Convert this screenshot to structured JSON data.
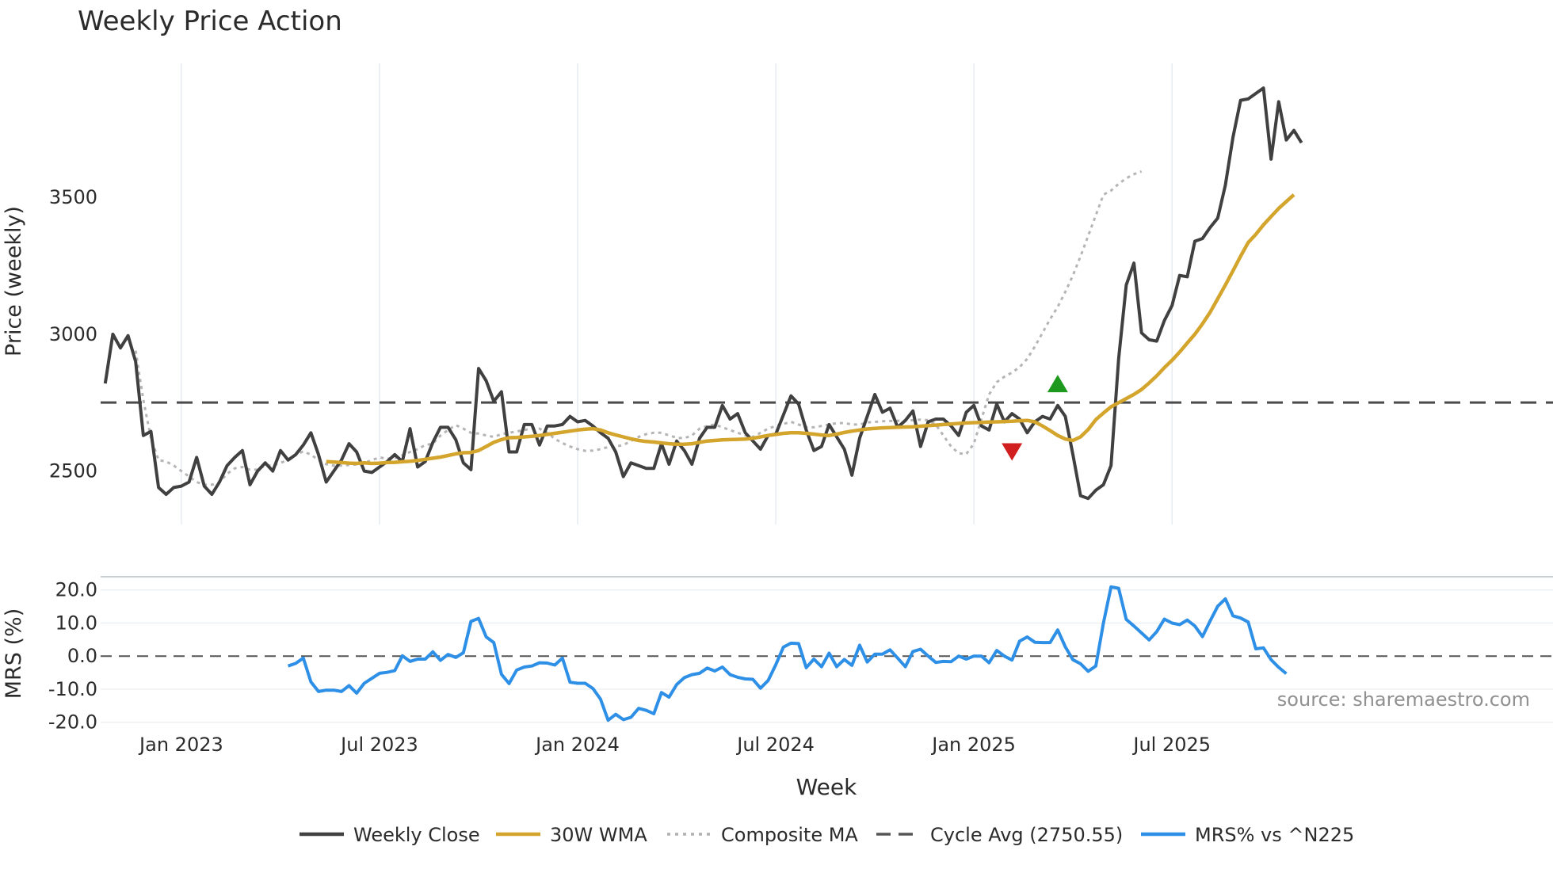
{
  "title": "Weekly Price Action",
  "source": "source: sharemaestro.com",
  "x_axis": {
    "label": "Week",
    "range": [
      -10.6,
      180
    ],
    "ticks": [
      {
        "label": "Jan 2023",
        "x": 0
      },
      {
        "label": "Jul 2023",
        "x": 26
      },
      {
        "label": "Jan 2024",
        "x": 52
      },
      {
        "label": "Jul 2024",
        "x": 78
      },
      {
        "label": "Jan 2025",
        "x": 104
      },
      {
        "label": "Jul 2025",
        "x": 130
      }
    ]
  },
  "price_axis": {
    "label": "Price (weekly)",
    "ylim": [
      2305,
      3990
    ],
    "ticks": [
      {
        "label": "2500",
        "v": 2500
      },
      {
        "label": "3000",
        "v": 3000
      },
      {
        "label": "3500",
        "v": 3500
      }
    ]
  },
  "mrs_axis": {
    "label": "MRS (%)",
    "ylim": [
      -21.5,
      24
    ],
    "ticks": [
      {
        "label": "20.0",
        "v": 20
      },
      {
        "label": "10.0",
        "v": 10
      },
      {
        "label": "0.0",
        "v": 0
      },
      {
        "label": "-10.0",
        "v": -10
      },
      {
        "label": "-20.0",
        "v": -20
      }
    ]
  },
  "legend": [
    {
      "label": "Weekly Close",
      "color": "#404040",
      "style": "solid"
    },
    {
      "label": "30W WMA",
      "color": "#d4a52c",
      "style": "solid"
    },
    {
      "label": "Composite MA",
      "color": "#b0b0b0",
      "style": "dotted"
    },
    {
      "label": "Cycle Avg (2750.55)",
      "color": "#555555",
      "style": "dashed"
    },
    {
      "label": "MRS% vs ^N225",
      "color": "#2e8fe6",
      "style": "solid"
    }
  ],
  "chart_data": {
    "type": "line",
    "title": "Weekly Price Action",
    "xlabel": "Week",
    "ylabel": "Price (weekly)",
    "x_start": -10,
    "cycle_avg": 2750.55,
    "series": [
      {
        "name": "Weekly Close",
        "values": [
          2820,
          3000,
          2950,
          2995,
          2900,
          2630,
          2645,
          2440,
          2415,
          2440,
          2445,
          2460,
          2550,
          2445,
          2415,
          2460,
          2520,
          2550,
          2575,
          2450,
          2500,
          2530,
          2500,
          2575,
          2540,
          2560,
          2595,
          2640,
          2560,
          2460,
          2500,
          2540,
          2600,
          2570,
          2500,
          2495,
          2515,
          2535,
          2560,
          2535,
          2655,
          2515,
          2535,
          2605,
          2660,
          2660,
          2615,
          2530,
          2505,
          2875,
          2830,
          2755,
          2790,
          2570,
          2570,
          2670,
          2670,
          2595,
          2665,
          2665,
          2670,
          2700,
          2680,
          2685,
          2665,
          2640,
          2620,
          2570,
          2480,
          2530,
          2520,
          2510,
          2510,
          2600,
          2525,
          2610,
          2575,
          2525,
          2620,
          2660,
          2660,
          2740,
          2690,
          2710,
          2640,
          2610,
          2580,
          2630,
          2635,
          2705,
          2775,
          2745,
          2650,
          2575,
          2590,
          2670,
          2625,
          2580,
          2485,
          2620,
          2700,
          2780,
          2715,
          2730,
          2660,
          2685,
          2720,
          2590,
          2680,
          2690,
          2690,
          2665,
          2630,
          2715,
          2740,
          2665,
          2650,
          2745,
          2680,
          2710,
          2690,
          2640,
          2680,
          2700,
          2690,
          2740,
          2700,
          2560,
          2410,
          2400,
          2430,
          2450,
          2520,
          2910,
          3180,
          3260,
          3005,
          2980,
          2975,
          3050,
          3105,
          3215,
          3210,
          3340,
          3350,
          3390,
          3425,
          3545,
          3720,
          3855,
          3860,
          3880,
          3900,
          3640,
          3850,
          3710,
          3745,
          3700
        ],
        "color": "#404040"
      },
      {
        "name": "30W WMA",
        "start_index": 29,
        "values": [
          2535,
          2533,
          2531,
          2529,
          2528,
          2530,
          2528,
          2529,
          2531,
          2532,
          2534,
          2536,
          2539,
          2543,
          2547,
          2551,
          2557,
          2563,
          2567,
          2568,
          2575,
          2590,
          2605,
          2615,
          2622,
          2623,
          2625,
          2627,
          2630,
          2634,
          2638,
          2642,
          2646,
          2650,
          2653,
          2655,
          2650,
          2640,
          2632,
          2625,
          2618,
          2612,
          2608,
          2606,
          2603,
          2600,
          2598,
          2598,
          2600,
          2605,
          2610,
          2612,
          2614,
          2615,
          2616,
          2617,
          2620,
          2625,
          2630,
          2634,
          2638,
          2640,
          2640,
          2638,
          2635,
          2632,
          2630,
          2635,
          2641,
          2646,
          2650,
          2654,
          2656,
          2658,
          2659,
          2660,
          2661,
          2662,
          2664,
          2666,
          2668,
          2670,
          2672,
          2674,
          2676,
          2677,
          2678,
          2679,
          2680,
          2681,
          2682,
          2684,
          2685,
          2680,
          2665,
          2648,
          2630,
          2617,
          2612,
          2625,
          2652,
          2688,
          2712,
          2735,
          2750,
          2765,
          2780,
          2798,
          2822,
          2848,
          2878,
          2905,
          2935,
          2968,
          3000,
          3038,
          3080,
          3130,
          3180,
          3232,
          3285,
          3335,
          3365,
          3400,
          3430,
          3460,
          3485,
          3510
        ]
      },
      {
        "name": "Composite MA",
        "start_index": 4,
        "values": [
          2940,
          2760,
          2620,
          2540,
          2535,
          2520,
          2500,
          2480,
          2460,
          2450,
          2450,
          2460,
          2490,
          2510,
          2515,
          2505,
          2505,
          2520,
          2520,
          2530,
          2540,
          2560,
          2572,
          2560,
          2540,
          2525,
          2520,
          2520,
          2522,
          2524,
          2530,
          2540,
          2550,
          2545,
          2548,
          2558,
          2570,
          2580,
          2595,
          2600,
          2630,
          2650,
          2668,
          2655,
          2640,
          2637,
          2630,
          2625,
          2635,
          2640,
          2645,
          2650,
          2656,
          2655,
          2640,
          2618,
          2602,
          2590,
          2580,
          2574,
          2575,
          2580,
          2588,
          2590,
          2595,
          2610,
          2625,
          2635,
          2640,
          2640,
          2630,
          2622,
          2620,
          2630,
          2655,
          2665,
          2670,
          2660,
          2650,
          2640,
          2630,
          2625,
          2640,
          2655,
          2665,
          2672,
          2680,
          2670,
          2660,
          2660,
          2665,
          2670,
          2675,
          2676,
          2670,
          2670,
          2678,
          2680,
          2682,
          2683,
          2684,
          2684,
          2686,
          2688,
          2686,
          2670,
          2630,
          2590,
          2565,
          2562,
          2600,
          2690,
          2780,
          2825,
          2845,
          2860,
          2880,
          2910,
          2955,
          3005,
          3055,
          3100,
          3155,
          3215,
          3285,
          3360,
          3435,
          3510,
          3525,
          3550,
          3570,
          3585,
          3595
        ]
      },
      {
        "name": "MRS% vs ^N225",
        "start_index": 24,
        "values": [
          -3,
          -2.2,
          -0.6,
          -7.8,
          -10.7,
          -10.3,
          -10.3,
          -10.7,
          -8.9,
          -11.2,
          -8.2,
          -6.7,
          -5.2,
          -4.9,
          -4.4,
          0.1,
          -1.6,
          -0.9,
          -0.9,
          1.3,
          -1.3,
          0.5,
          -0.4,
          1,
          10.5,
          11.4,
          5.8,
          4.1,
          -5.5,
          -8.3,
          -4.2,
          -3.3,
          -3,
          -2,
          -2.1,
          -2.7,
          -0.6,
          -7.9,
          -8.2,
          -8.2,
          -9.8,
          -13,
          -19.4,
          -17.6,
          -19.2,
          -18.5,
          -15.8,
          -16.4,
          -17.4,
          -11,
          -12.4,
          -8.6,
          -6.5,
          -5.6,
          -5.2,
          -3.6,
          -4.5,
          -3.3,
          -5.6,
          -6.4,
          -6.9,
          -7,
          -9.7,
          -7.4,
          -2.6,
          2.7,
          3.9,
          3.8,
          -3.5,
          -0.9,
          -3.2,
          0.9,
          -3.2,
          -1,
          -2.8,
          3.3,
          -1.8,
          0.6,
          0.6,
          1.9,
          -0.6,
          -3.2,
          1.4,
          2.1,
          0,
          -1.9,
          -1.6,
          -1.7,
          0,
          -0.9,
          0,
          0,
          -2,
          1.7,
          0,
          -1.2,
          4.5,
          5.8,
          4.2,
          4.1,
          4.1,
          7.9,
          2.8,
          -1.1,
          -2.3,
          -4.6,
          -3,
          10,
          20.9,
          20.5,
          11.1,
          9.1,
          7,
          4.9,
          7.4,
          11.2,
          10,
          9.5,
          10.9,
          9.1,
          5.9,
          10.6,
          15.1,
          17.3,
          12.2,
          11.5,
          10.3,
          2.2,
          2.5,
          -1.1,
          -3.4,
          -5.3
        ],
        "color": "#2e8fe6"
      }
    ],
    "markers": [
      {
        "type": "sell",
        "shape": "triangle-down",
        "color": "#d11f1f",
        "x": 109,
        "y": 2570
      },
      {
        "type": "buy",
        "shape": "triangle-up",
        "color": "#1d9a1d",
        "x": 115,
        "y": 2820
      }
    ]
  }
}
